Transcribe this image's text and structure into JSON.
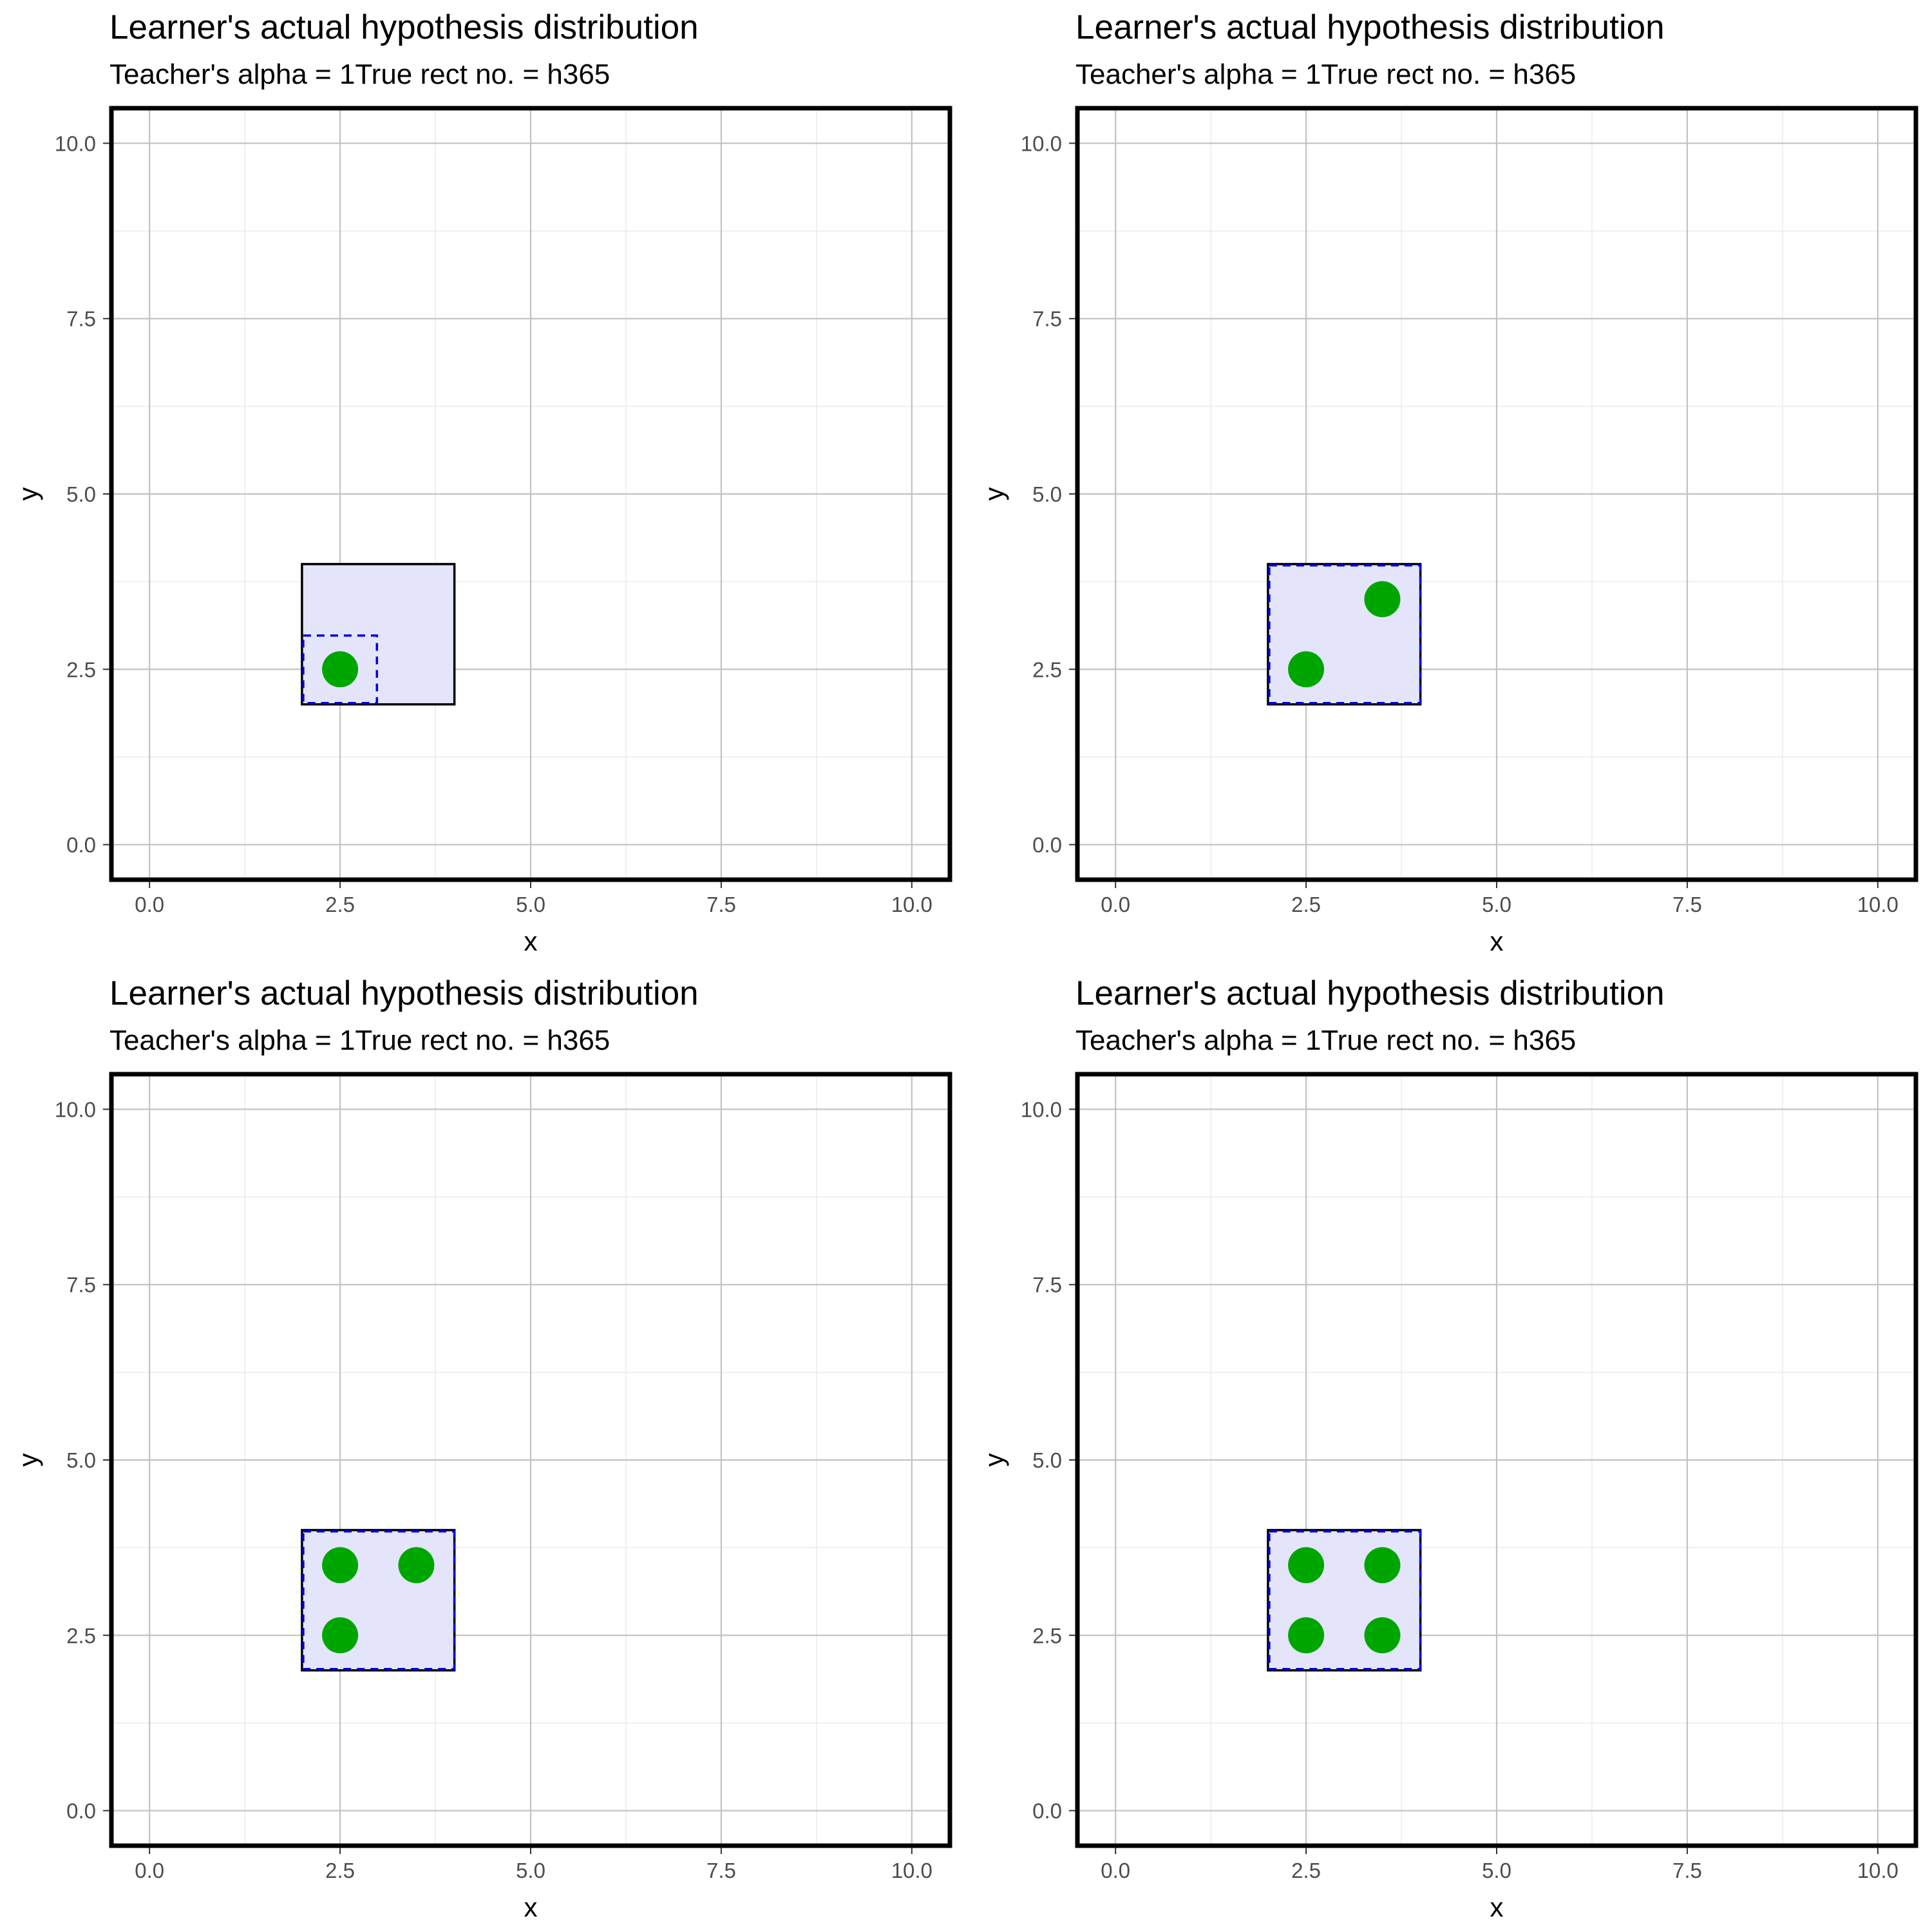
{
  "chart_data": [
    {
      "type": "scatter",
      "title": "Learner's actual hypothesis distribution",
      "subtitle": "Teacher's alpha = 1True rect no. = h365",
      "xlabel": "x",
      "ylabel": "y",
      "xlim": [
        -0.5,
        10.5
      ],
      "ylim": [
        -0.5,
        10.5
      ],
      "xticks": [
        "0.0",
        "2.5",
        "5.0",
        "7.5",
        "10.0"
      ],
      "yticks": [
        "0.0",
        "2.5",
        "5.0",
        "7.5",
        "10.0"
      ],
      "grid": true,
      "true_rect": {
        "x0": 2,
        "x1": 4,
        "y0": 2,
        "y1": 4
      },
      "hypothesis_rect": {
        "x0": 2,
        "x1": 3,
        "y0": 2,
        "y1": 3
      },
      "points": [
        {
          "x": 2.5,
          "y": 2.5
        }
      ]
    },
    {
      "type": "scatter",
      "title": "Learner's actual hypothesis distribution",
      "subtitle": "Teacher's alpha = 1True rect no. = h365",
      "xlabel": "x",
      "ylabel": "y",
      "xlim": [
        -0.5,
        10.5
      ],
      "ylim": [
        -0.5,
        10.5
      ],
      "xticks": [
        "0.0",
        "2.5",
        "5.0",
        "7.5",
        "10.0"
      ],
      "yticks": [
        "0.0",
        "2.5",
        "5.0",
        "7.5",
        "10.0"
      ],
      "grid": true,
      "true_rect": {
        "x0": 2,
        "x1": 4,
        "y0": 2,
        "y1": 4
      },
      "hypothesis_rect": {
        "x0": 2,
        "x1": 4,
        "y0": 2,
        "y1": 4
      },
      "points": [
        {
          "x": 2.5,
          "y": 2.5
        },
        {
          "x": 3.5,
          "y": 3.5
        }
      ]
    },
    {
      "type": "scatter",
      "title": "Learner's actual hypothesis distribution",
      "subtitle": "Teacher's alpha = 1True rect no. = h365",
      "xlabel": "x",
      "ylabel": "y",
      "xlim": [
        -0.5,
        10.5
      ],
      "ylim": [
        -0.5,
        10.5
      ],
      "xticks": [
        "0.0",
        "2.5",
        "5.0",
        "7.5",
        "10.0"
      ],
      "yticks": [
        "0.0",
        "2.5",
        "5.0",
        "7.5",
        "10.0"
      ],
      "grid": true,
      "true_rect": {
        "x0": 2,
        "x1": 4,
        "y0": 2,
        "y1": 4
      },
      "hypothesis_rect": {
        "x0": 2,
        "x1": 4,
        "y0": 2,
        "y1": 4
      },
      "points": [
        {
          "x": 2.5,
          "y": 3.5
        },
        {
          "x": 3.5,
          "y": 3.5
        },
        {
          "x": 2.5,
          "y": 2.5
        }
      ]
    },
    {
      "type": "scatter",
      "title": "Learner's actual hypothesis distribution",
      "subtitle": "Teacher's alpha = 1True rect no. = h365",
      "xlabel": "x",
      "ylabel": "y",
      "xlim": [
        -0.5,
        10.5
      ],
      "ylim": [
        -0.5,
        10.5
      ],
      "xticks": [
        "0.0",
        "2.5",
        "5.0",
        "7.5",
        "10.0"
      ],
      "yticks": [
        "0.0",
        "2.5",
        "5.0",
        "7.5",
        "10.0"
      ],
      "grid": true,
      "true_rect": {
        "x0": 2,
        "x1": 4,
        "y0": 2,
        "y1": 4
      },
      "hypothesis_rect": {
        "x0": 2,
        "x1": 4,
        "y0": 2,
        "y1": 4
      },
      "points": [
        {
          "x": 2.5,
          "y": 3.5
        },
        {
          "x": 3.5,
          "y": 3.5
        },
        {
          "x": 2.5,
          "y": 2.5
        },
        {
          "x": 3.5,
          "y": 2.5
        }
      ]
    }
  ],
  "colors": {
    "point": "#00a600",
    "true_rect_fill": "#e4e4fb",
    "true_rect_stroke": "#000000",
    "hypothesis_stroke": "#0000dd",
    "grid_major": "#c2c2c2",
    "grid_minor": "#ebebeb"
  }
}
